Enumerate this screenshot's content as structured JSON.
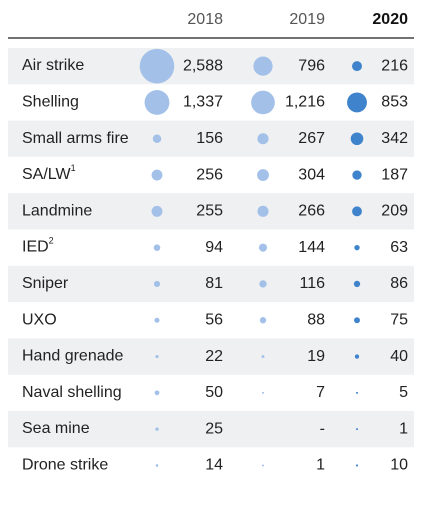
{
  "table": {
    "columns": [
      {
        "year": "2018",
        "color": "#a3c1e8",
        "bold": false
      },
      {
        "year": "2019",
        "color": "#a3c1e8",
        "bold": false
      },
      {
        "year": "2020",
        "color": "#3f83cc",
        "bold": true
      }
    ],
    "rows": [
      {
        "label": "Air strike",
        "values": [
          2588,
          796,
          216
        ],
        "value_labels": [
          "2,588",
          "796",
          "216"
        ]
      },
      {
        "label": "Shelling",
        "values": [
          1337,
          1216,
          853
        ],
        "value_labels": [
          "1,337",
          "1,216",
          "853"
        ]
      },
      {
        "label": "Small arms fire",
        "values": [
          156,
          267,
          342
        ],
        "value_labels": [
          "156",
          "267",
          "342"
        ]
      },
      {
        "label": "SA/LW",
        "note": "1",
        "values": [
          256,
          304,
          187
        ],
        "value_labels": [
          "256",
          "304",
          "187"
        ]
      },
      {
        "label": "Landmine",
        "values": [
          255,
          266,
          209
        ],
        "value_labels": [
          "255",
          "266",
          "209"
        ]
      },
      {
        "label": "IED",
        "note": "2",
        "values": [
          94,
          144,
          63
        ],
        "value_labels": [
          "94",
          "144",
          "63"
        ]
      },
      {
        "label": "Sniper",
        "values": [
          81,
          116,
          86
        ],
        "value_labels": [
          "81",
          "116",
          "86"
        ]
      },
      {
        "label": "UXO",
        "values": [
          56,
          88,
          75
        ],
        "value_labels": [
          "56",
          "88",
          "75"
        ]
      },
      {
        "label": "Hand grenade",
        "values": [
          22,
          19,
          40
        ],
        "value_labels": [
          "22",
          "19",
          "40"
        ]
      },
      {
        "label": "Naval shelling",
        "values": [
          50,
          7,
          5
        ],
        "value_labels": [
          "50",
          "7",
          "5"
        ]
      },
      {
        "label": "Sea mine",
        "values": [
          25,
          null,
          1
        ],
        "value_labels": [
          "25",
          "-",
          "1"
        ]
      },
      {
        "label": "Drone strike",
        "values": [
          14,
          1,
          10
        ],
        "value_labels": [
          "14",
          "1",
          "10"
        ]
      }
    ]
  }
}
